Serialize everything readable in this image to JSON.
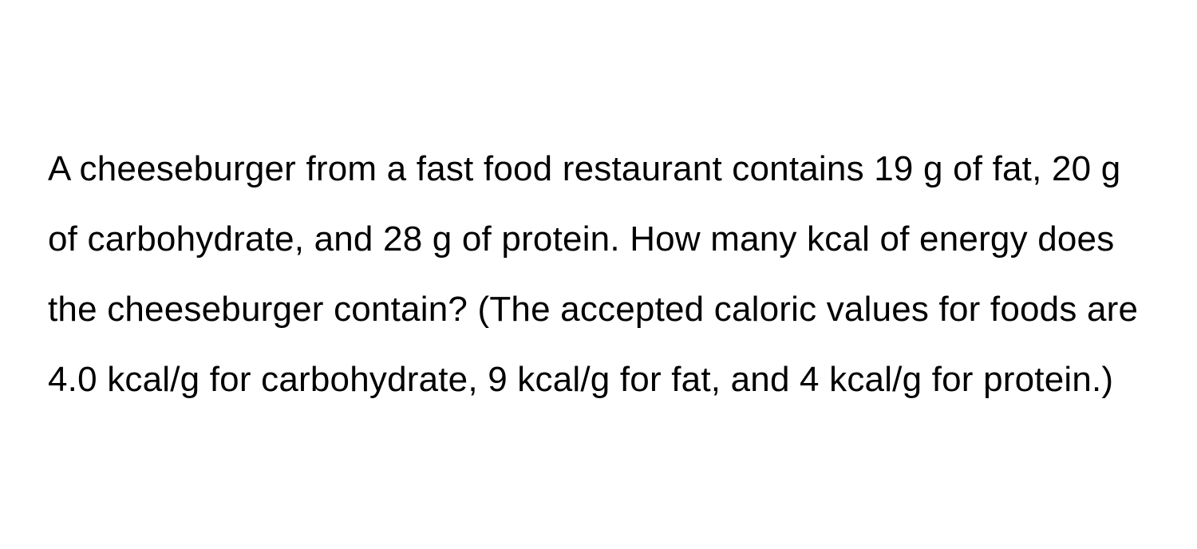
{
  "question": {
    "text": "A cheeseburger from a fast food restaurant contains 19 g of fat, 20 g of carbohydrate, and 28 g of protein. How many kcal of energy does the cheeseburger contain? (The accepted caloric values for foods are 4.0 kcal/g for carbohydrate, 9 kcal/g for fat, and 4 kcal/g for protein.)",
    "font_size": 44,
    "line_height": 2.0,
    "text_color": "#000000",
    "background_color": "#ffffff"
  }
}
